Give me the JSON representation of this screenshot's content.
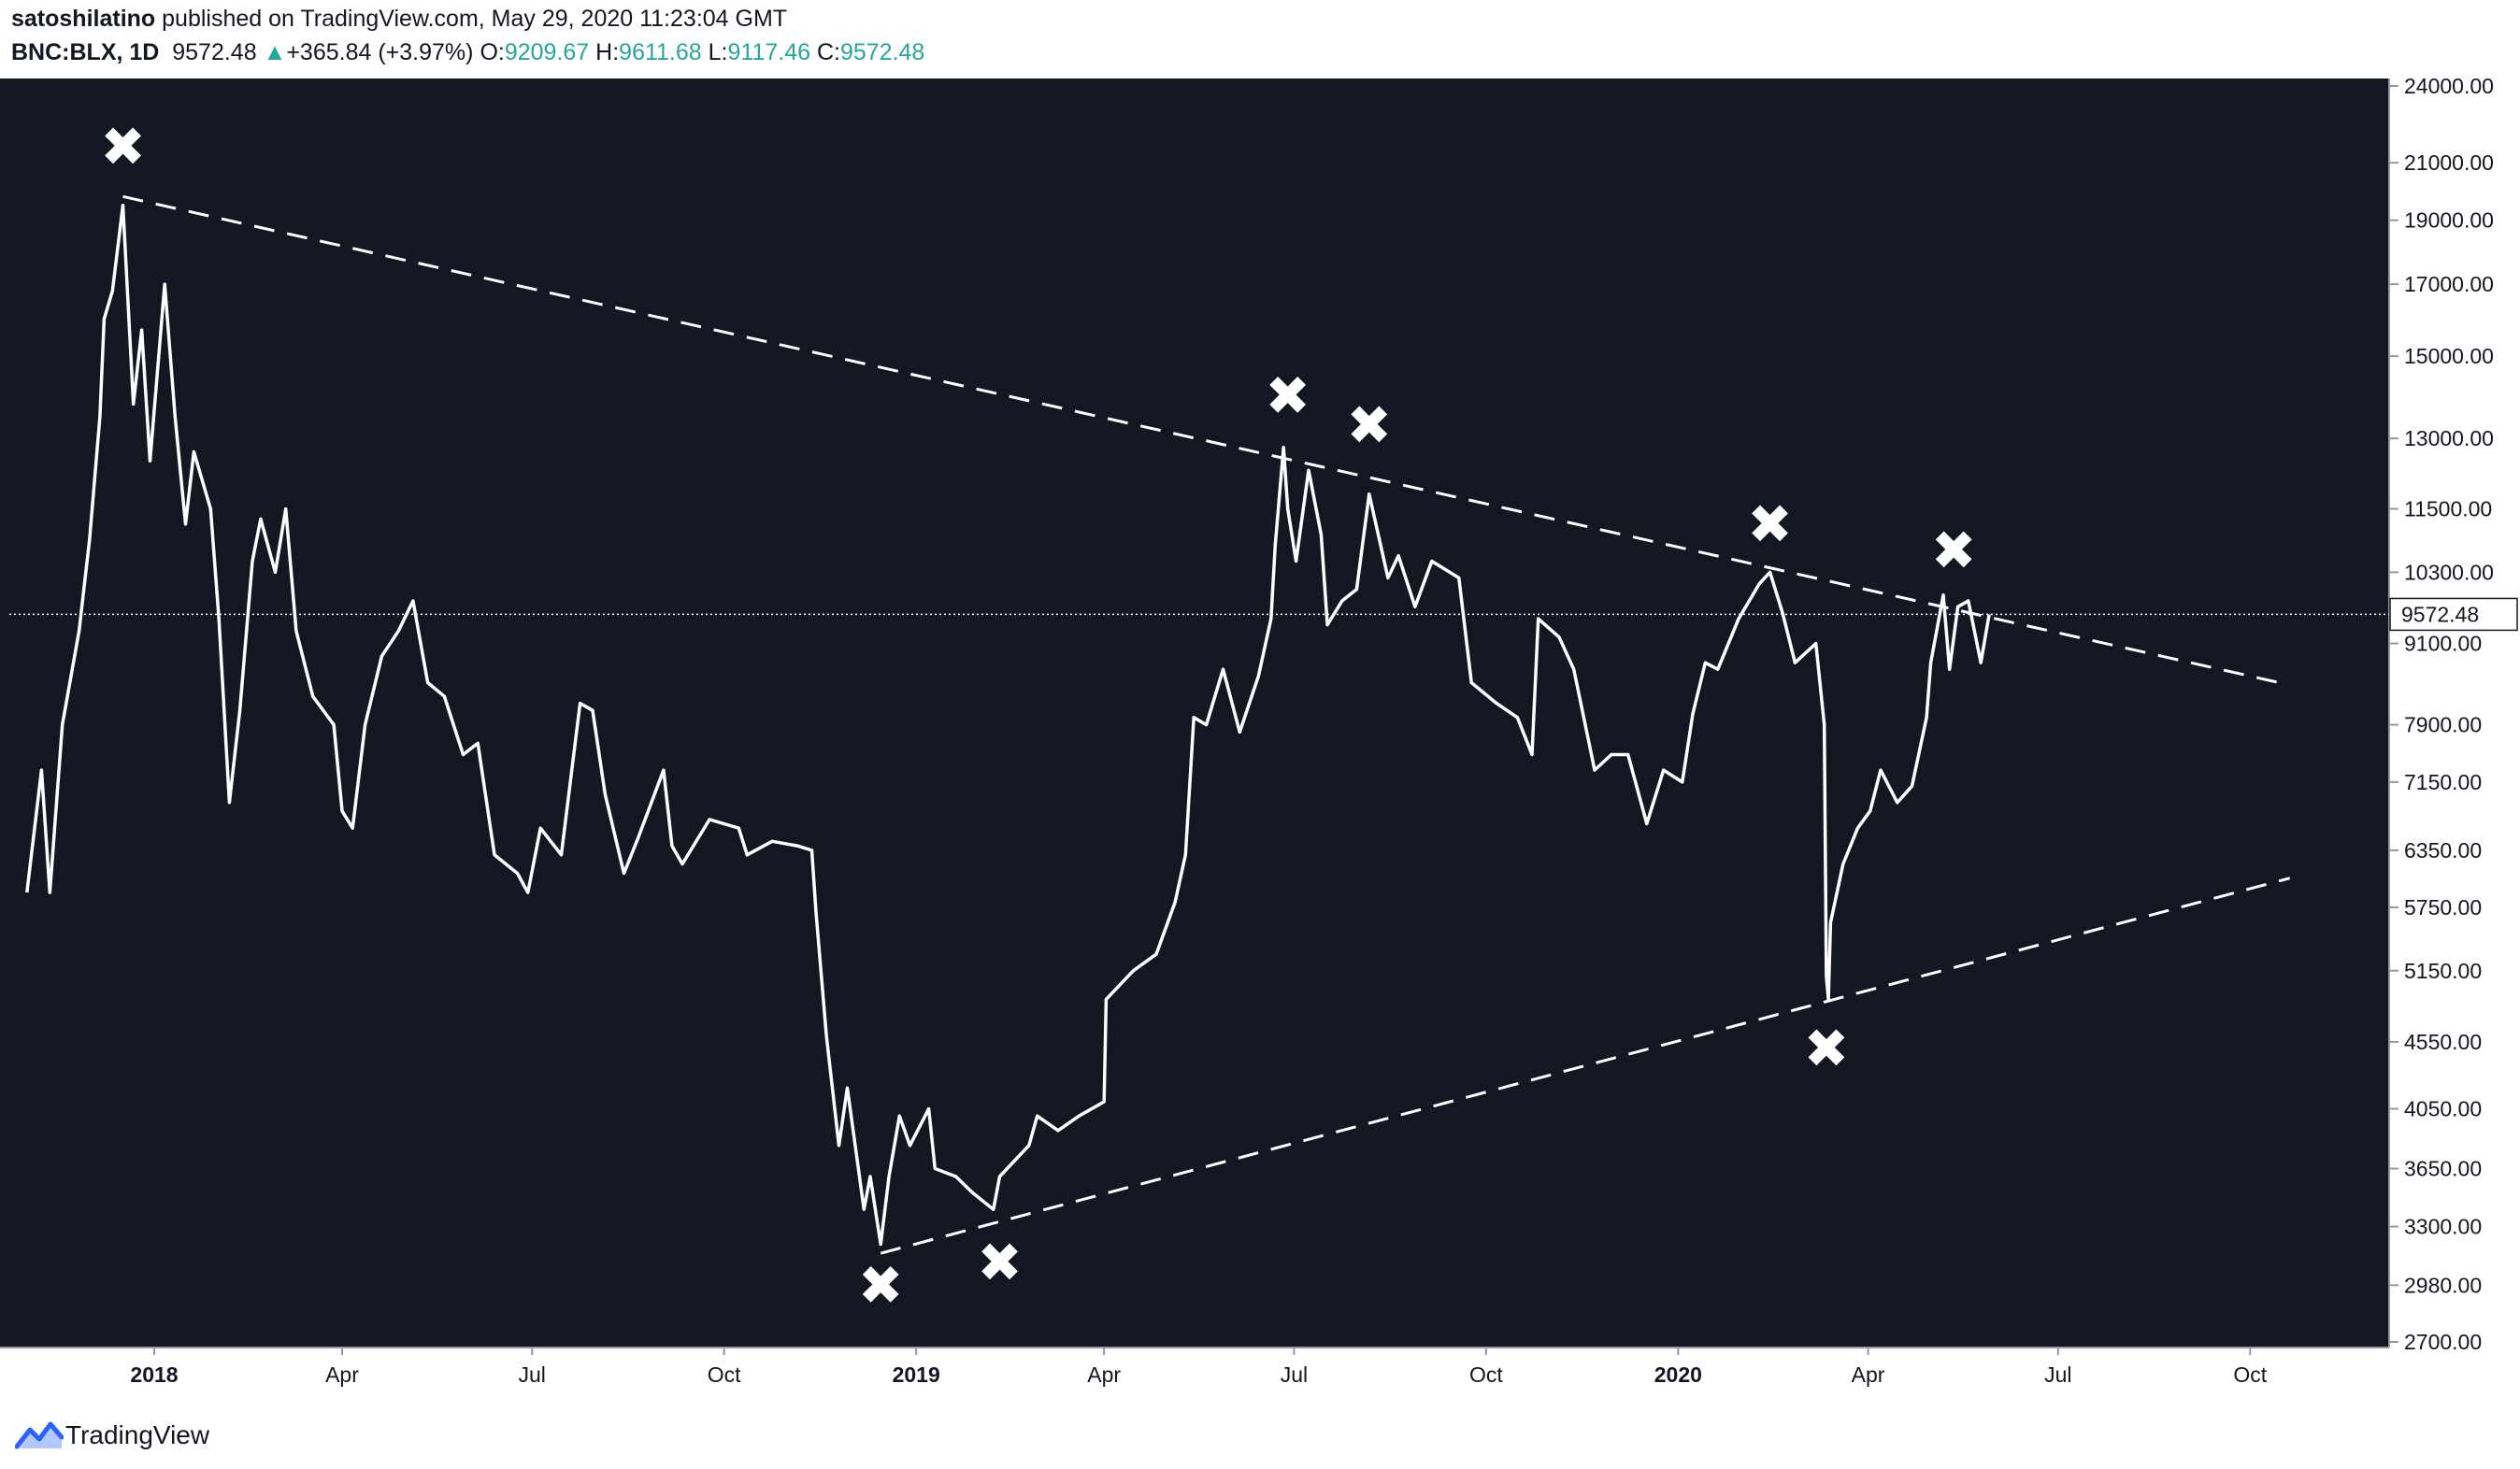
{
  "header": {
    "author": "satoshilatino",
    "published_text": "published on TradingView.com, May 29, 2020 11:23:04 GMT",
    "symbol": "BNC:BLX, 1D",
    "last": "9572.48",
    "change_arrow": "▲",
    "change": "+365.84 (+3.97%)",
    "o_label": "O:",
    "o_value": "9209.67",
    "h_label": "H:",
    "h_value": "9611.68",
    "l_label": "L:",
    "l_value": "9117.46",
    "c_label": "C:",
    "c_value": "9572.48"
  },
  "footer": {
    "brand": "TradingView",
    "logo_icon": "tradingview-logo-icon"
  },
  "colors": {
    "background": "#131722",
    "line": "#ffffff",
    "up": "#26a69a",
    "axis_text": "#131722"
  },
  "chart_data": {
    "type": "line",
    "title": "",
    "series": [
      {
        "name": "",
        "points": [
          [
            "2017-11-01",
            5900
          ],
          [
            "2017-11-08",
            7300
          ],
          [
            "2017-11-12",
            5900
          ],
          [
            "2017-11-18",
            7900
          ],
          [
            "2017-11-26",
            9300
          ],
          [
            "2017-12-01",
            10900
          ],
          [
            "2017-12-06",
            13500
          ],
          [
            "2017-12-08",
            16000
          ],
          [
            "2017-12-12",
            16800
          ],
          [
            "2017-12-17",
            19500
          ],
          [
            "2017-12-22",
            13800
          ],
          [
            "2017-12-26",
            15700
          ],
          [
            "2017-12-30",
            12500
          ],
          [
            "2018-01-06",
            17000
          ],
          [
            "2018-01-11",
            13500
          ],
          [
            "2018-01-16",
            11200
          ],
          [
            "2018-01-20",
            12700
          ],
          [
            "2018-01-28",
            11500
          ],
          [
            "2018-02-01",
            9500
          ],
          [
            "2018-02-06",
            6900
          ],
          [
            "2018-02-11",
            8100
          ],
          [
            "2018-02-17",
            10500
          ],
          [
            "2018-02-21",
            11300
          ],
          [
            "2018-02-28",
            10300
          ],
          [
            "2018-03-05",
            11500
          ],
          [
            "2018-03-10",
            9300
          ],
          [
            "2018-03-18",
            8300
          ],
          [
            "2018-03-28",
            7900
          ],
          [
            "2018-04-01",
            6800
          ],
          [
            "2018-04-06",
            6600
          ],
          [
            "2018-04-12",
            7900
          ],
          [
            "2018-04-20",
            8900
          ],
          [
            "2018-04-28",
            9300
          ],
          [
            "2018-05-05",
            9800
          ],
          [
            "2018-05-12",
            8500
          ],
          [
            "2018-05-20",
            8300
          ],
          [
            "2018-05-29",
            7500
          ],
          [
            "2018-06-05",
            7650
          ],
          [
            "2018-06-13",
            6300
          ],
          [
            "2018-06-24",
            6100
          ],
          [
            "2018-06-29",
            5900
          ],
          [
            "2018-07-05",
            6600
          ],
          [
            "2018-07-15",
            6300
          ],
          [
            "2018-07-24",
            8200
          ],
          [
            "2018-07-30",
            8100
          ],
          [
            "2018-08-05",
            7000
          ],
          [
            "2018-08-14",
            6100
          ],
          [
            "2018-08-21",
            6500
          ],
          [
            "2018-09-02",
            7300
          ],
          [
            "2018-09-06",
            6400
          ],
          [
            "2018-09-11",
            6200
          ],
          [
            "2018-09-24",
            6700
          ],
          [
            "2018-10-08",
            6600
          ],
          [
            "2018-10-12",
            6300
          ],
          [
            "2018-10-24",
            6450
          ],
          [
            "2018-11-05",
            6400
          ],
          [
            "2018-11-12",
            6350
          ],
          [
            "2018-11-14",
            5700
          ],
          [
            "2018-11-19",
            4600
          ],
          [
            "2018-11-25",
            3800
          ],
          [
            "2018-11-29",
            4200
          ],
          [
            "2018-12-07",
            3400
          ],
          [
            "2018-12-10",
            3600
          ],
          [
            "2018-12-15",
            3200
          ],
          [
            "2018-12-19",
            3600
          ],
          [
            "2018-12-24",
            4000
          ],
          [
            "2018-12-29",
            3800
          ],
          [
            "2019-01-07",
            4050
          ],
          [
            "2019-01-10",
            3650
          ],
          [
            "2019-01-20",
            3600
          ],
          [
            "2019-01-28",
            3500
          ],
          [
            "2019-02-07",
            3400
          ],
          [
            "2019-02-10",
            3600
          ],
          [
            "2019-02-24",
            3800
          ],
          [
            "2019-02-28",
            4000
          ],
          [
            "2019-03-10",
            3900
          ],
          [
            "2019-03-20",
            4000
          ],
          [
            "2019-04-01",
            4100
          ],
          [
            "2019-04-02",
            4900
          ],
          [
            "2019-04-15",
            5150
          ],
          [
            "2019-04-26",
            5300
          ],
          [
            "2019-05-05",
            5800
          ],
          [
            "2019-05-10",
            6300
          ],
          [
            "2019-05-14",
            8000
          ],
          [
            "2019-05-20",
            7900
          ],
          [
            "2019-05-28",
            8700
          ],
          [
            "2019-06-05",
            7800
          ],
          [
            "2019-06-14",
            8600
          ],
          [
            "2019-06-20",
            9500
          ],
          [
            "2019-06-22",
            10800
          ],
          [
            "2019-06-26",
            12800
          ],
          [
            "2019-06-28",
            11500
          ],
          [
            "2019-07-02",
            10500
          ],
          [
            "2019-07-08",
            12300
          ],
          [
            "2019-07-14",
            11000
          ],
          [
            "2019-07-17",
            9400
          ],
          [
            "2019-07-24",
            9800
          ],
          [
            "2019-07-31",
            10000
          ],
          [
            "2019-08-06",
            11800
          ],
          [
            "2019-08-15",
            10200
          ],
          [
            "2019-08-20",
            10600
          ],
          [
            "2019-08-28",
            9700
          ],
          [
            "2019-09-05",
            10500
          ],
          [
            "2019-09-18",
            10200
          ],
          [
            "2019-09-24",
            8500
          ],
          [
            "2019-10-06",
            8200
          ],
          [
            "2019-10-16",
            8000
          ],
          [
            "2019-10-23",
            7500
          ],
          [
            "2019-10-26",
            9500
          ],
          [
            "2019-11-05",
            9200
          ],
          [
            "2019-11-12",
            8700
          ],
          [
            "2019-11-22",
            7300
          ],
          [
            "2019-11-30",
            7500
          ],
          [
            "2019-12-08",
            7500
          ],
          [
            "2019-12-17",
            6650
          ],
          [
            "2019-12-25",
            7300
          ],
          [
            "2020-01-03",
            7150
          ],
          [
            "2020-01-08",
            8050
          ],
          [
            "2020-01-14",
            8800
          ],
          [
            "2020-01-20",
            8700
          ],
          [
            "2020-01-30",
            9500
          ],
          [
            "2020-02-09",
            10100
          ],
          [
            "2020-02-14",
            10300
          ],
          [
            "2020-02-20",
            9600
          ],
          [
            "2020-02-26",
            8800
          ],
          [
            "2020-03-07",
            9100
          ],
          [
            "2020-03-11",
            7900
          ],
          [
            "2020-03-12",
            5100
          ],
          [
            "2020-03-13",
            4900
          ],
          [
            "2020-03-14",
            5600
          ],
          [
            "2020-03-20",
            6200
          ],
          [
            "2020-03-27",
            6600
          ],
          [
            "2020-04-02",
            6800
          ],
          [
            "2020-04-07",
            7300
          ],
          [
            "2020-04-15",
            6900
          ],
          [
            "2020-04-22",
            7100
          ],
          [
            "2020-04-29",
            8000
          ],
          [
            "2020-05-01",
            8800
          ],
          [
            "2020-05-07",
            9900
          ],
          [
            "2020-05-10",
            8700
          ],
          [
            "2020-05-14",
            9700
          ],
          [
            "2020-05-19",
            9800
          ],
          [
            "2020-05-25",
            8800
          ],
          [
            "2020-05-29",
            9572.48
          ]
        ]
      }
    ],
    "trendlines": [
      {
        "style": "dashed",
        "from": [
          "2017-12-17",
          19800
        ],
        "to": [
          "2020-10-15",
          8500
        ]
      },
      {
        "style": "dashed",
        "from": [
          "2018-12-15",
          3150
        ],
        "to": [
          "2020-10-20",
          6050
        ]
      }
    ],
    "markers": [
      {
        "symbol": "✖",
        "date": "2017-12-17",
        "value": 21600
      },
      {
        "symbol": "✖",
        "date": "2018-12-15",
        "value": 2980
      },
      {
        "symbol": "✖",
        "date": "2019-02-10",
        "value": 3100
      },
      {
        "symbol": "✖",
        "date": "2019-06-28",
        "value": 14000
      },
      {
        "symbol": "✖",
        "date": "2019-08-06",
        "value": 13300
      },
      {
        "symbol": "✖",
        "date": "2020-02-14",
        "value": 11200
      },
      {
        "symbol": "✖",
        "date": "2020-03-12",
        "value": 4500
      },
      {
        "symbol": "✖",
        "date": "2020-05-12",
        "value": 10700
      }
    ],
    "price_line": {
      "value": 9572.48,
      "label": "9572.48"
    },
    "x_ticks": [
      {
        "date": "2018-01-01",
        "label": "2018",
        "bold": true
      },
      {
        "date": "2018-04-01",
        "label": "Apr"
      },
      {
        "date": "2018-07-01",
        "label": "Jul"
      },
      {
        "date": "2018-10-01",
        "label": "Oct"
      },
      {
        "date": "2019-01-01",
        "label": "2019",
        "bold": true
      },
      {
        "date": "2019-04-01",
        "label": "Apr"
      },
      {
        "date": "2019-07-01",
        "label": "Jul"
      },
      {
        "date": "2019-10-01",
        "label": "Oct"
      },
      {
        "date": "2020-01-01",
        "label": "2020",
        "bold": true
      },
      {
        "date": "2020-04-01",
        "label": "Apr"
      },
      {
        "date": "2020-07-01",
        "label": "Jul"
      },
      {
        "date": "2020-10-01",
        "label": "Oct"
      }
    ],
    "y_ticks": [
      2700,
      2980,
      3300,
      3650,
      4050,
      4550,
      5150,
      5750,
      6350,
      7150,
      7900,
      9100,
      10300,
      11500,
      13000,
      15000,
      17000,
      19000,
      21000,
      24000
    ],
    "y_tick_labels": [
      "2700.00",
      "2980.00",
      "3300.00",
      "3650.00",
      "4050.00",
      "4550.00",
      "5150.00",
      "5750.00",
      "6350.00",
      "7150.00",
      "7900.00",
      "9100.00",
      "10300.00",
      "11500.00",
      "13000.00",
      "15000.00",
      "17000.00",
      "19000.00",
      "21000.00",
      "24000.00"
    ],
    "y_scale": "log",
    "ylim": [
      2700,
      24000
    ],
    "xlim": [
      "2017-11-01",
      "2020-11-15"
    ],
    "grid": false
  }
}
